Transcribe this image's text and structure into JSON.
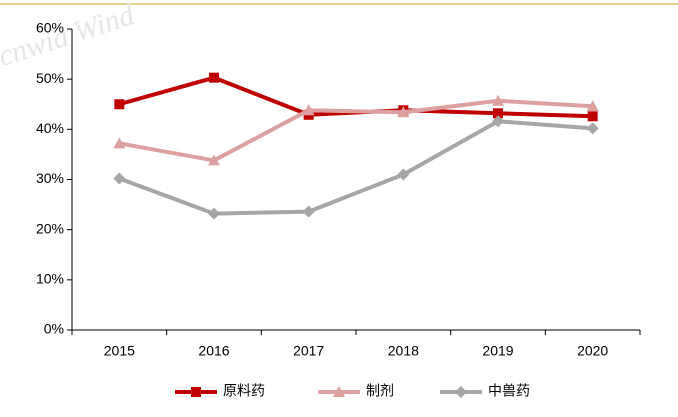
{
  "chart_data": {
    "type": "line",
    "annotation": "cnwia Wind",
    "categories": [
      "2015",
      "2016",
      "2017",
      "2018",
      "2019",
      "2020"
    ],
    "series": [
      {
        "name": "原料药",
        "color": "#c00000",
        "marker": "square",
        "values": [
          45,
          50.3,
          42.9,
          43.8,
          43.2,
          42.6
        ]
      },
      {
        "name": "制剂",
        "color": "#dca0a0",
        "marker": "triangle",
        "values": [
          37.2,
          33.8,
          43.8,
          43.4,
          45.7,
          44.6
        ]
      },
      {
        "name": "中兽药",
        "color": "#a6a6a6",
        "marker": "diamond",
        "values": [
          30.2,
          23.2,
          23.6,
          31,
          41.6,
          40.2
        ]
      }
    ],
    "ylim": [
      0,
      60
    ],
    "yticks": [
      {
        "value": 0,
        "label": "0%"
      },
      {
        "value": 10,
        "label": "10%"
      },
      {
        "value": 20,
        "label": "20%"
      },
      {
        "value": 30,
        "label": "30%"
      },
      {
        "value": 40,
        "label": "40%"
      },
      {
        "value": 50,
        "label": "50%"
      },
      {
        "value": 60,
        "label": "60%"
      }
    ],
    "legend": "bottom",
    "grid": false
  }
}
